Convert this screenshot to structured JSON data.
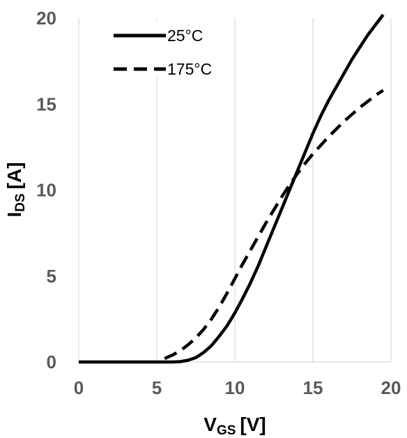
{
  "chart_data": {
    "type": "line",
    "xlabel": "V",
    "xlabel_sub": "GS",
    "xlabel_unit": "[V]",
    "ylabel": "I",
    "ylabel_sub": "DS",
    "ylabel_unit": "[A]",
    "xlim": [
      0,
      20
    ],
    "ylim": [
      0,
      20
    ],
    "xticks": [
      "0",
      "5",
      "10",
      "15",
      "20"
    ],
    "yticks": [
      "0",
      "5",
      "10",
      "15",
      "20"
    ],
    "grid": "vertical",
    "legend_position": "top-left",
    "series": [
      {
        "name": "25°C",
        "style": "solid",
        "x": [
          0,
          2,
          4,
          5,
          6,
          6.5,
          7,
          7.5,
          8,
          8.5,
          9,
          9.5,
          10,
          10.5,
          11,
          11.5,
          12,
          12.5,
          13,
          13.5,
          14,
          14.5,
          15,
          15.5,
          16,
          16.5,
          17,
          17.5,
          18,
          18.5,
          19,
          19.5
        ],
        "y": [
          0,
          0,
          0,
          0,
          0,
          0.02,
          0.1,
          0.25,
          0.55,
          0.95,
          1.5,
          2.1,
          2.85,
          3.7,
          4.6,
          5.6,
          6.7,
          7.8,
          8.9,
          10.0,
          11.1,
          12.2,
          13.3,
          14.3,
          15.2,
          16.0,
          16.8,
          17.6,
          18.3,
          19.0,
          19.6,
          20.2
        ]
      },
      {
        "name": "175°C",
        "style": "dashed",
        "x": [
          5.5,
          6,
          6.5,
          7,
          7.5,
          8,
          8.5,
          9,
          9.5,
          10,
          10.5,
          11,
          11.5,
          12,
          12.5,
          13,
          13.5,
          14,
          14.5,
          15,
          15.5,
          16,
          16.5,
          17,
          17.5,
          18,
          18.5,
          19,
          19.5
        ],
        "y": [
          0.2,
          0.4,
          0.65,
          1.0,
          1.4,
          1.9,
          2.5,
          3.2,
          4.0,
          4.85,
          5.7,
          6.5,
          7.3,
          8.1,
          8.85,
          9.6,
          10.3,
          10.95,
          11.55,
          12.1,
          12.6,
          13.1,
          13.55,
          14.0,
          14.4,
          14.8,
          15.15,
          15.5,
          15.8
        ]
      }
    ]
  }
}
